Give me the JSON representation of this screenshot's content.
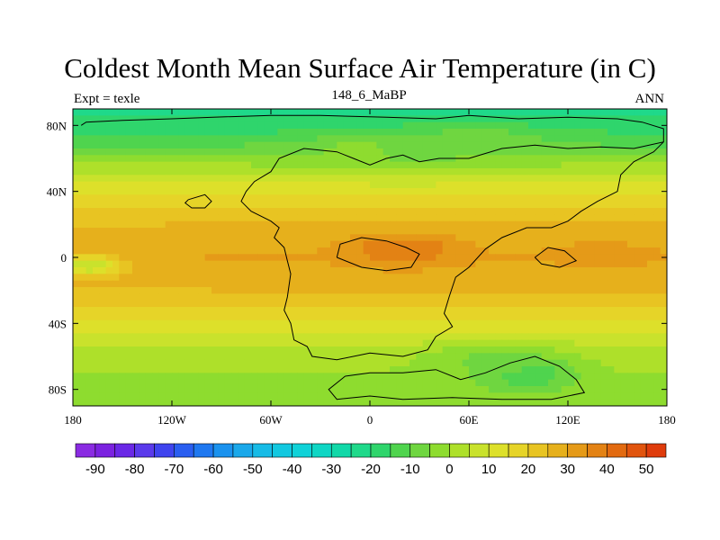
{
  "chart_data": {
    "type": "heatmap",
    "title": "Coldest Month Mean Surface Air Temperature (in C)",
    "subtitle_left": "Expt = texle",
    "subtitle_center": "148_6_MaBP",
    "subtitle_right": "ANN",
    "xlim": [
      -180,
      180
    ],
    "ylim": [
      -90,
      90
    ],
    "x_ticks": [
      {
        "value": -180,
        "label": "180"
      },
      {
        "value": -120,
        "label": "120W"
      },
      {
        "value": -60,
        "label": "60W"
      },
      {
        "value": 0,
        "label": "0"
      },
      {
        "value": 60,
        "label": "60E"
      },
      {
        "value": 120,
        "label": "120E"
      },
      {
        "value": 180,
        "label": "180"
      }
    ],
    "y_ticks": [
      {
        "value": 80,
        "label": "80N"
      },
      {
        "value": 40,
        "label": "40N"
      },
      {
        "value": 0,
        "label": "0"
      },
      {
        "value": -40,
        "label": "40S"
      },
      {
        "value": -80,
        "label": "80S"
      }
    ],
    "latitude_profile": {
      "lat": [
        90,
        80,
        70,
        60,
        50,
        40,
        30,
        20,
        10,
        0,
        -10,
        -20,
        -30,
        -40,
        -50,
        -60,
        -70,
        -80,
        -90
      ],
      "value": [
        -22,
        -18,
        -12,
        -3,
        5,
        14,
        20,
        25,
        28,
        30,
        28,
        25,
        20,
        14,
        8,
        3,
        0,
        -2,
        -3
      ]
    },
    "anomalies": [
      {
        "lon": 20,
        "lat": 5,
        "rx": 42,
        "ry": 12,
        "value": 40
      },
      {
        "lon": 140,
        "lat": 2,
        "rx": 38,
        "ry": 9,
        "value": 33
      },
      {
        "lon": -170,
        "lat": -5,
        "rx": 25,
        "ry": 8,
        "value": 5
      },
      {
        "lon": 20,
        "lat": 65,
        "rx": 70,
        "ry": 14,
        "value": -6
      },
      {
        "lon": 70,
        "lat": 72,
        "rx": 60,
        "ry": 10,
        "value": -8
      },
      {
        "lon": 95,
        "lat": -70,
        "rx": 35,
        "ry": 12,
        "value": -18
      },
      {
        "lon": 75,
        "lat": -62,
        "rx": 55,
        "ry": 14,
        "value": -6
      },
      {
        "lon": -10,
        "lat": 65,
        "rx": 30,
        "ry": 10,
        "value": -4
      }
    ],
    "colorbar": {
      "levels": [
        -95,
        -90,
        -85,
        -80,
        -75,
        -70,
        -65,
        -60,
        -55,
        -50,
        -45,
        -40,
        -35,
        -30,
        -25,
        -20,
        -15,
        -10,
        -5,
        0,
        5,
        10,
        15,
        20,
        25,
        30,
        35,
        40,
        45,
        50,
        55
      ],
      "colors": [
        "#8a2be2",
        "#7b22e0",
        "#6a28e6",
        "#5a3aeb",
        "#3f44ee",
        "#2a5ef0",
        "#1f78f0",
        "#1a92ee",
        "#1aa8ea",
        "#17bbe6",
        "#12c8e0",
        "#10d2d8",
        "#0fd6c4",
        "#11d8a8",
        "#1fd98a",
        "#2fd56c",
        "#4fd44e",
        "#6fd640",
        "#8edc2f",
        "#aee02a",
        "#c9e22c",
        "#dde02a",
        "#e6d428",
        "#e8c422",
        "#e6b01c",
        "#e59a18",
        "#e38214",
        "#e26a10",
        "#e1540e",
        "#df3c0c"
      ],
      "labels": [
        {
          "value": -90,
          "text": "-90"
        },
        {
          "value": -80,
          "text": "-80"
        },
        {
          "value": -70,
          "text": "-70"
        },
        {
          "value": -60,
          "text": "-60"
        },
        {
          "value": -50,
          "text": "-50"
        },
        {
          "value": -40,
          "text": "-40"
        },
        {
          "value": -30,
          "text": "-30"
        },
        {
          "value": -20,
          "text": "-20"
        },
        {
          "value": -10,
          "text": "-10"
        },
        {
          "value": 0,
          "text": "0"
        },
        {
          "value": 10,
          "text": "10"
        },
        {
          "value": 20,
          "text": "20"
        },
        {
          "value": 30,
          "text": "30"
        },
        {
          "value": 40,
          "text": "40"
        },
        {
          "value": 50,
          "text": "50"
        }
      ]
    },
    "continent_outlines": [
      [
        [
          -175,
          80
        ],
        [
          -172,
          82
        ],
        [
          -150,
          83
        ],
        [
          -120,
          84
        ],
        [
          -95,
          85
        ],
        [
          -60,
          86
        ],
        [
          -30,
          86
        ],
        [
          10,
          85
        ],
        [
          40,
          84
        ],
        [
          60,
          86
        ],
        [
          90,
          84
        ],
        [
          120,
          85
        ],
        [
          150,
          84
        ],
        [
          165,
          82
        ],
        [
          178,
          78
        ],
        [
          178,
          70
        ],
        [
          160,
          66
        ],
        [
          140,
          67
        ],
        [
          120,
          66
        ],
        [
          100,
          68
        ],
        [
          80,
          66
        ],
        [
          60,
          60
        ],
        [
          42,
          60
        ],
        [
          30,
          58
        ],
        [
          20,
          62
        ],
        [
          10,
          60
        ],
        [
          0,
          56
        ],
        [
          -10,
          60
        ],
        [
          -20,
          64
        ],
        [
          -40,
          66
        ],
        [
          -55,
          60
        ],
        [
          -60,
          52
        ],
        [
          -70,
          46
        ],
        [
          -75,
          40
        ],
        [
          -78,
          34
        ],
        [
          -72,
          28
        ],
        [
          -60,
          22
        ],
        [
          -55,
          18
        ],
        [
          -58,
          12
        ],
        [
          -52,
          6
        ],
        [
          -50,
          -2
        ],
        [
          -48,
          -10
        ],
        [
          -50,
          -24
        ],
        [
          -52,
          -32
        ],
        [
          -48,
          -40
        ],
        [
          -46,
          -50
        ],
        [
          -38,
          -54
        ],
        [
          -35,
          -60
        ],
        [
          -20,
          -62
        ],
        [
          0,
          -58
        ],
        [
          20,
          -60
        ],
        [
          35,
          -56
        ],
        [
          40,
          -48
        ],
        [
          50,
          -42
        ],
        [
          45,
          -34
        ],
        [
          48,
          -24
        ],
        [
          52,
          -12
        ],
        [
          60,
          -6
        ],
        [
          70,
          5
        ],
        [
          80,
          12
        ],
        [
          95,
          18
        ],
        [
          110,
          18
        ],
        [
          120,
          22
        ],
        [
          128,
          28
        ],
        [
          138,
          34
        ],
        [
          150,
          40
        ],
        [
          152,
          50
        ],
        [
          160,
          58
        ],
        [
          172,
          64
        ],
        [
          178,
          70
        ]
      ],
      [
        [
          -110,
          35
        ],
        [
          -100,
          38
        ],
        [
          -96,
          34
        ],
        [
          -100,
          30
        ],
        [
          -108,
          30
        ],
        [
          -112,
          33
        ],
        [
          -110,
          35
        ]
      ],
      [
        [
          -15,
          -72
        ],
        [
          0,
          -70
        ],
        [
          20,
          -70
        ],
        [
          40,
          -68
        ],
        [
          55,
          -74
        ],
        [
          70,
          -70
        ],
        [
          85,
          -64
        ],
        [
          100,
          -60
        ],
        [
          115,
          -66
        ],
        [
          125,
          -74
        ],
        [
          130,
          -82
        ],
        [
          110,
          -86
        ],
        [
          80,
          -86
        ],
        [
          50,
          -85
        ],
        [
          20,
          -86
        ],
        [
          0,
          -84
        ],
        [
          -20,
          -86
        ],
        [
          -25,
          -80
        ],
        [
          -15,
          -72
        ]
      ],
      [
        [
          100,
          0
        ],
        [
          108,
          6
        ],
        [
          118,
          4
        ],
        [
          125,
          -2
        ],
        [
          115,
          -6
        ],
        [
          104,
          -4
        ],
        [
          100,
          0
        ]
      ],
      [
        [
          -20,
          0
        ],
        [
          -18,
          8
        ],
        [
          -5,
          12
        ],
        [
          10,
          10
        ],
        [
          22,
          6
        ],
        [
          30,
          2
        ],
        [
          25,
          -6
        ],
        [
          10,
          -8
        ],
        [
          -5,
          -6
        ],
        [
          -20,
          0
        ]
      ]
    ]
  }
}
